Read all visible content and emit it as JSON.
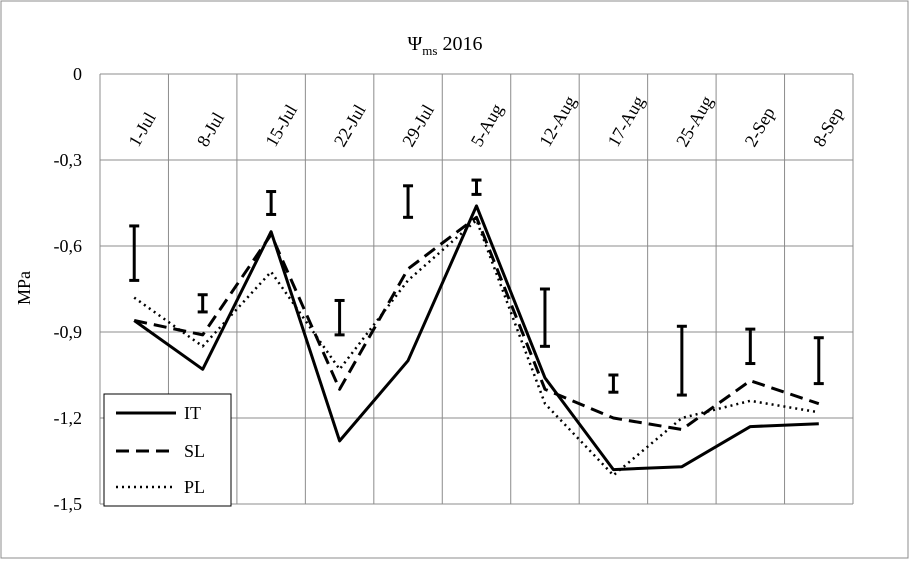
{
  "chart_data": {
    "type": "line",
    "title": "Ψms 2016",
    "title_parts": {
      "symbol": "Ψ",
      "subscript": "ms",
      "year": "2016"
    },
    "ylabel": "MPa",
    "ylim": [
      -1.5,
      0
    ],
    "yticks": [
      0,
      -0.3,
      -0.6,
      -0.9,
      -1.2,
      -1.5
    ],
    "ytick_labels": [
      "0",
      "-0,3",
      "-0,6",
      "-0,9",
      "-1,2",
      "-1,5"
    ],
    "categories": [
      "1-Jul",
      "8-Jul",
      "15-Jul",
      "22-Jul",
      "29-Jul",
      "5-Aug",
      "12-Aug",
      "17-Aug",
      "25-Aug",
      "2-Sep",
      "8-Sep"
    ],
    "grid": true,
    "legend_position": "bottom-left",
    "series": [
      {
        "name": "IT",
        "style": "solid",
        "values": [
          -0.86,
          -1.03,
          -0.55,
          -1.28,
          -1.0,
          -0.46,
          -1.06,
          -1.38,
          -1.37,
          -1.23,
          -1.22
        ]
      },
      {
        "name": "SL",
        "style": "dashed",
        "values": [
          -0.86,
          -0.91,
          -0.56,
          -1.1,
          -0.68,
          -0.5,
          -1.1,
          -1.2,
          -1.24,
          -1.07,
          -1.15
        ]
      },
      {
        "name": "PL",
        "style": "dotted",
        "values": [
          -0.78,
          -0.95,
          -0.69,
          -1.03,
          -0.72,
          -0.51,
          -1.15,
          -1.4,
          -1.2,
          -1.14,
          -1.18
        ]
      }
    ],
    "error_bars": [
      {
        "category": "1-Jul",
        "low": -0.72,
        "high": -0.53
      },
      {
        "category": "8-Jul",
        "low": -0.83,
        "high": -0.77
      },
      {
        "category": "15-Jul",
        "low": -0.49,
        "high": -0.41
      },
      {
        "category": "22-Jul",
        "low": -0.91,
        "high": -0.79
      },
      {
        "category": "29-Jul",
        "low": -0.5,
        "high": -0.39
      },
      {
        "category": "5-Aug",
        "low": -0.42,
        "high": -0.37
      },
      {
        "category": "12-Aug",
        "low": -0.95,
        "high": -0.75
      },
      {
        "category": "17-Aug",
        "low": -1.11,
        "high": -1.05
      },
      {
        "category": "25-Aug",
        "low": -1.12,
        "high": -0.88
      },
      {
        "category": "2-Sep",
        "low": -1.01,
        "high": -0.89
      },
      {
        "category": "8-Sep",
        "low": -1.08,
        "high": -0.92
      }
    ]
  }
}
